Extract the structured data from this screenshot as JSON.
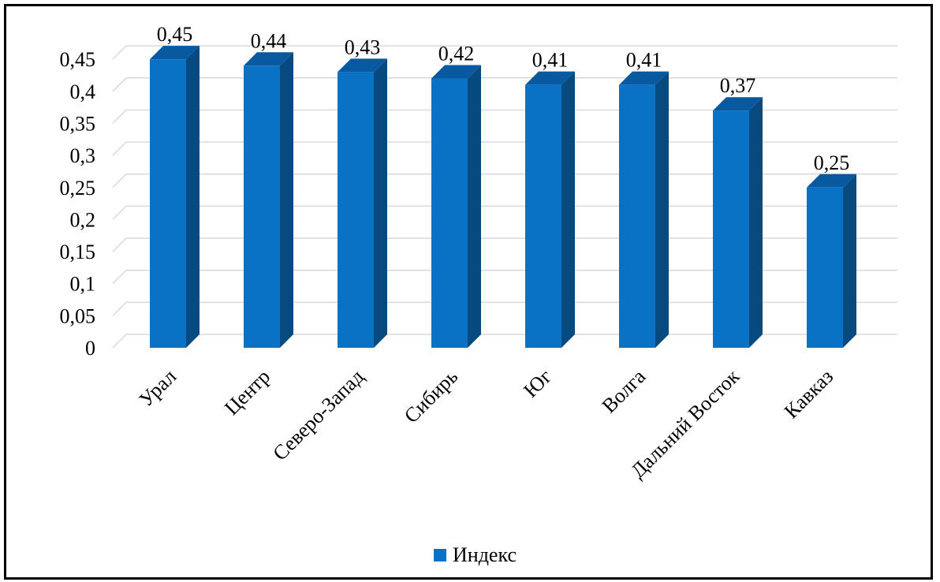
{
  "chart_data": {
    "type": "bar",
    "style": "3d-column",
    "categories": [
      "Урал",
      "Центр",
      "Северо-Запад",
      "Сибирь",
      "Юг",
      "Волга",
      "Дальний Восток",
      "Кавказ"
    ],
    "series": [
      {
        "name": "Индекс",
        "values": [
          0.45,
          0.44,
          0.43,
          0.42,
          0.41,
          0.41,
          0.37,
          0.25
        ]
      }
    ],
    "data_labels": [
      "0,45",
      "0,44",
      "0,43",
      "0,42",
      "0,41",
      "0,41",
      "0,37",
      "0,25"
    ],
    "yticks": [
      0,
      0.05,
      0.1,
      0.15,
      0.2,
      0.25,
      0.3,
      0.35,
      0.4,
      0.45
    ],
    "ytick_labels": [
      "0",
      "0,05",
      "0,1",
      "0,15",
      "0,2",
      "0,25",
      "0,3",
      "0,35",
      "0,4",
      "0,45"
    ],
    "ylim": [
      0,
      0.45
    ],
    "grid": true,
    "legend": {
      "position": "bottom",
      "entries": [
        "Индекс"
      ]
    },
    "colors": {
      "front": "#0a72c4",
      "side": "#074a80",
      "top": "#0859a0",
      "grid": "#d9d9d9"
    }
  }
}
